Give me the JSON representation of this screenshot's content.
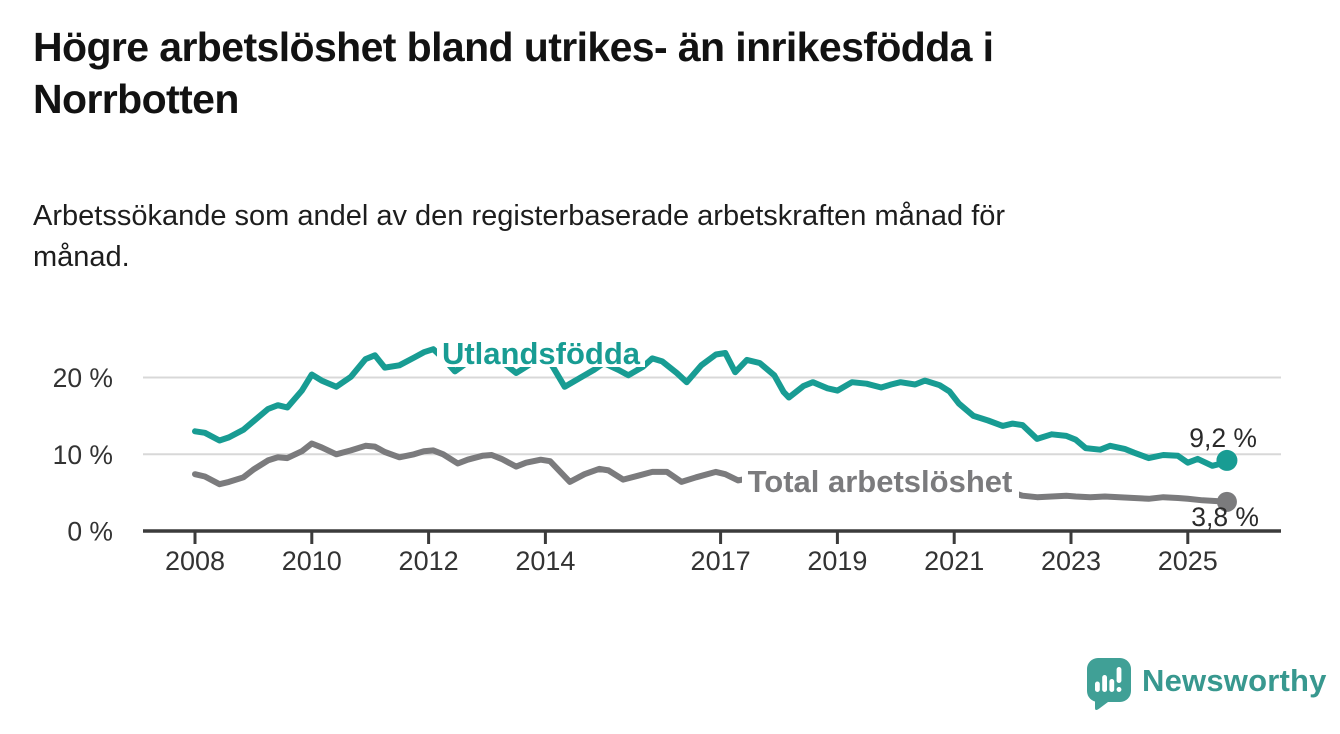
{
  "title": "Högre arbetslöshet bland utrikes- än inrikesfödda i Norrbotten",
  "subtitle": "Arbetssökande som andel av den registerbaserade arbetskraften månad för månad.",
  "branding": {
    "name": "Newsworthy",
    "icon": "newsworthy-chart-bubble-icon",
    "color": "#40a096"
  },
  "colors": {
    "accent_teal": "#189c93",
    "series_gray": "#7b7b7d",
    "axis": "#3b3b3b",
    "grid": "#d8d8d8",
    "text": "#121212",
    "tick_text": "#333333",
    "value_label_text": "#2b2b2b"
  },
  "chart_data": {
    "type": "line",
    "unit": "%",
    "grid": "horizontal",
    "x_axis": {
      "tick_labels": [
        "2008",
        "2010",
        "2012",
        "2014",
        "2017",
        "2019",
        "2021",
        "2023",
        "2025"
      ],
      "tick_values": [
        2008,
        2010,
        2012,
        2014,
        2017,
        2019,
        2021,
        2023,
        2025
      ],
      "range": [
        2007.1,
        2026.6
      ]
    },
    "y_axis": {
      "tick_labels": [
        "0 %",
        "10 %",
        "20 %"
      ],
      "tick_values": [
        0,
        10,
        20
      ],
      "gridlines": [
        10,
        20
      ],
      "range": [
        0,
        26
      ]
    },
    "series": [
      {
        "name": "Utlandsfödda",
        "color": "#189c93",
        "end_label": "9,2 %",
        "end_value": 9.2,
        "points": [
          [
            2008.0,
            13.0
          ],
          [
            2008.17,
            12.8
          ],
          [
            2008.42,
            11.8
          ],
          [
            2008.58,
            12.2
          ],
          [
            2008.83,
            13.2
          ],
          [
            2009.0,
            14.3
          ],
          [
            2009.25,
            15.9
          ],
          [
            2009.42,
            16.4
          ],
          [
            2009.58,
            16.1
          ],
          [
            2009.83,
            18.3
          ],
          [
            2010.0,
            20.4
          ],
          [
            2010.17,
            19.6
          ],
          [
            2010.42,
            18.8
          ],
          [
            2010.67,
            20.1
          ],
          [
            2010.92,
            22.4
          ],
          [
            2011.08,
            22.9
          ],
          [
            2011.25,
            21.3
          ],
          [
            2011.5,
            21.6
          ],
          [
            2011.75,
            22.6
          ],
          [
            2011.92,
            23.3
          ],
          [
            2012.08,
            23.7
          ],
          [
            2012.25,
            22.5
          ],
          [
            2012.45,
            20.8
          ],
          [
            2012.67,
            22.0
          ],
          [
            2012.92,
            22.9
          ],
          [
            2013.08,
            23.1
          ],
          [
            2013.3,
            21.8
          ],
          [
            2013.5,
            20.6
          ],
          [
            2013.75,
            21.8
          ],
          [
            2013.95,
            22.4
          ],
          [
            2014.08,
            22.0
          ],
          [
            2014.33,
            18.8
          ],
          [
            2014.58,
            19.9
          ],
          [
            2014.83,
            21.0
          ],
          [
            2015.0,
            21.9
          ],
          [
            2015.25,
            21.0
          ],
          [
            2015.42,
            20.3
          ],
          [
            2015.67,
            21.4
          ],
          [
            2015.83,
            22.5
          ],
          [
            2016.0,
            22.1
          ],
          [
            2016.25,
            20.6
          ],
          [
            2016.42,
            19.4
          ],
          [
            2016.67,
            21.6
          ],
          [
            2016.92,
            23.0
          ],
          [
            2017.08,
            23.2
          ],
          [
            2017.25,
            20.7
          ],
          [
            2017.45,
            22.3
          ],
          [
            2017.67,
            21.9
          ],
          [
            2017.92,
            20.3
          ],
          [
            2018.08,
            18.1
          ],
          [
            2018.17,
            17.4
          ],
          [
            2018.42,
            18.9
          ],
          [
            2018.58,
            19.4
          ],
          [
            2018.83,
            18.6
          ],
          [
            2019.0,
            18.3
          ],
          [
            2019.25,
            19.4
          ],
          [
            2019.5,
            19.2
          ],
          [
            2019.75,
            18.7
          ],
          [
            2019.92,
            19.1
          ],
          [
            2020.08,
            19.4
          ],
          [
            2020.33,
            19.1
          ],
          [
            2020.5,
            19.6
          ],
          [
            2020.75,
            19.0
          ],
          [
            2020.92,
            18.2
          ],
          [
            2021.08,
            16.6
          ],
          [
            2021.33,
            15.0
          ],
          [
            2021.58,
            14.4
          ],
          [
            2021.83,
            13.7
          ],
          [
            2022.0,
            14.0
          ],
          [
            2022.17,
            13.8
          ],
          [
            2022.42,
            12.0
          ],
          [
            2022.67,
            12.6
          ],
          [
            2022.92,
            12.4
          ],
          [
            2023.08,
            11.9
          ],
          [
            2023.25,
            10.8
          ],
          [
            2023.5,
            10.6
          ],
          [
            2023.67,
            11.1
          ],
          [
            2023.92,
            10.7
          ],
          [
            2024.08,
            10.2
          ],
          [
            2024.33,
            9.5
          ],
          [
            2024.58,
            9.9
          ],
          [
            2024.83,
            9.8
          ],
          [
            2025.0,
            8.9
          ],
          [
            2025.17,
            9.4
          ],
          [
            2025.42,
            8.5
          ],
          [
            2025.58,
            8.8
          ],
          [
            2025.67,
            9.2
          ]
        ]
      },
      {
        "name": "Total arbetslöshet",
        "color": "#7b7b7d",
        "end_label": "3,8 %",
        "end_value": 3.8,
        "points": [
          [
            2008.0,
            7.4
          ],
          [
            2008.17,
            7.1
          ],
          [
            2008.42,
            6.1
          ],
          [
            2008.58,
            6.4
          ],
          [
            2008.83,
            7.0
          ],
          [
            2009.0,
            8.0
          ],
          [
            2009.25,
            9.2
          ],
          [
            2009.42,
            9.6
          ],
          [
            2009.58,
            9.5
          ],
          [
            2009.83,
            10.4
          ],
          [
            2010.0,
            11.4
          ],
          [
            2010.17,
            10.9
          ],
          [
            2010.42,
            10.0
          ],
          [
            2010.67,
            10.5
          ],
          [
            2010.92,
            11.1
          ],
          [
            2011.08,
            11.0
          ],
          [
            2011.25,
            10.3
          ],
          [
            2011.5,
            9.6
          ],
          [
            2011.75,
            10.0
          ],
          [
            2011.92,
            10.4
          ],
          [
            2012.08,
            10.5
          ],
          [
            2012.25,
            10.0
          ],
          [
            2012.5,
            8.8
          ],
          [
            2012.67,
            9.3
          ],
          [
            2012.92,
            9.8
          ],
          [
            2013.08,
            9.9
          ],
          [
            2013.25,
            9.4
          ],
          [
            2013.5,
            8.4
          ],
          [
            2013.67,
            8.9
          ],
          [
            2013.92,
            9.3
          ],
          [
            2014.08,
            9.1
          ],
          [
            2014.42,
            6.4
          ],
          [
            2014.67,
            7.4
          ],
          [
            2014.92,
            8.1
          ],
          [
            2015.08,
            7.9
          ],
          [
            2015.33,
            6.7
          ],
          [
            2015.58,
            7.2
          ],
          [
            2015.83,
            7.7
          ],
          [
            2016.08,
            7.7
          ],
          [
            2016.33,
            6.4
          ],
          [
            2016.58,
            7.0
          ],
          [
            2016.92,
            7.7
          ],
          [
            2017.08,
            7.4
          ],
          [
            2017.3,
            6.6
          ],
          [
            2017.5,
            6.9
          ],
          [
            2017.75,
            7.2
          ],
          [
            2018.0,
            7.4
          ],
          [
            2018.25,
            7.0
          ],
          [
            2018.5,
            6.7
          ],
          [
            2018.75,
            7.0
          ],
          [
            2019.0,
            7.2
          ],
          [
            2019.25,
            6.9
          ],
          [
            2019.5,
            6.6
          ],
          [
            2019.75,
            6.9
          ],
          [
            2020.0,
            7.1
          ],
          [
            2020.33,
            7.6
          ],
          [
            2020.5,
            7.7
          ],
          [
            2020.75,
            7.4
          ],
          [
            2021.0,
            7.0
          ],
          [
            2021.25,
            6.4
          ],
          [
            2021.5,
            5.8
          ],
          [
            2021.75,
            5.3
          ],
          [
            2022.0,
            5.0
          ],
          [
            2022.17,
            4.6
          ],
          [
            2022.42,
            4.4
          ],
          [
            2022.67,
            4.5
          ],
          [
            2022.92,
            4.6
          ],
          [
            2023.08,
            4.5
          ],
          [
            2023.33,
            4.4
          ],
          [
            2023.58,
            4.5
          ],
          [
            2023.83,
            4.4
          ],
          [
            2024.08,
            4.3
          ],
          [
            2024.33,
            4.2
          ],
          [
            2024.58,
            4.4
          ],
          [
            2024.83,
            4.3
          ],
          [
            2025.0,
            4.2
          ],
          [
            2025.25,
            4.0
          ],
          [
            2025.5,
            3.9
          ],
          [
            2025.67,
            3.8
          ]
        ]
      }
    ]
  }
}
